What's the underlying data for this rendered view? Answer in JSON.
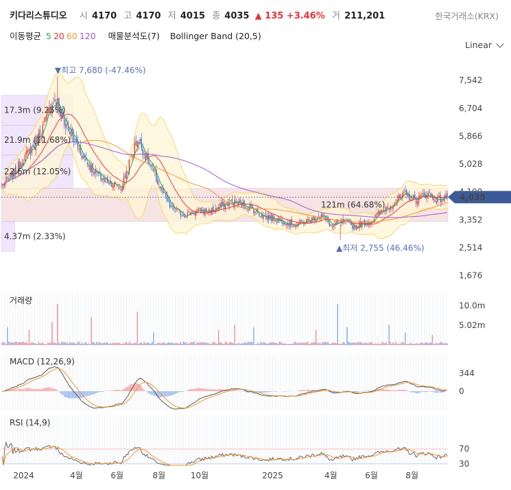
{
  "header": {
    "stock_name": "키다리스튜디오",
    "open_label": "시",
    "open_value": "4170",
    "high_label": "고",
    "high_value": "4170",
    "low_label": "저",
    "low_value": "4015",
    "close_label": "종",
    "close_value": "4035",
    "change_text": "▲ 135 +3.46%",
    "volume_label": "거",
    "volume_value": "211,201",
    "exchange": "한국거래소(KRX)"
  },
  "indicators": {
    "ma_label": "이동평균",
    "ma_periods": [
      {
        "text": "5",
        "color": "#2aa84a"
      },
      {
        "text": "20",
        "color": "#e5323d"
      },
      {
        "text": "60",
        "color": "#f0962e"
      },
      {
        "text": "120",
        "color": "#9b59d0"
      }
    ],
    "vp_label": "매물분석도(7)",
    "bb_label": "Bollinger Band (20,5)"
  },
  "scale_selector": {
    "label": "Linear"
  },
  "colors": {
    "up": "#e5323d",
    "down": "#2f6fdb",
    "bb": "#f5d76e",
    "bb_fill": "#fff6d5",
    "current_price_bg": "#3d5a98",
    "macd_line": "#555555",
    "signal_line": "#f0962e"
  },
  "chart_data": [
    {
      "type": "candlestick",
      "panel": "price",
      "y_ticks": [
        7542,
        6704,
        5866,
        5028,
        4190,
        3352,
        2514,
        1676
      ],
      "y_tick_labels": [
        "7,542",
        "6,704",
        "5,866",
        "5,028",
        "4,190",
        "3,352",
        "2,514",
        "1,676"
      ],
      "ylim": [
        1400,
        8000
      ],
      "current_price_label": "4,035",
      "current_price": 4035,
      "x_labels": [
        "2024",
        "4월",
        "6월",
        "8월",
        "10월",
        "2025",
        "4월",
        "6월",
        "8월"
      ],
      "x_label_index": [
        16,
        55,
        85,
        116,
        146,
        200,
        243,
        273,
        303
      ],
      "n_bars": 330,
      "anchor_closes": [
        [
          0,
          4400
        ],
        [
          8,
          4700
        ],
        [
          16,
          5200
        ],
        [
          24,
          5600
        ],
        [
          32,
          6300
        ],
        [
          38,
          7000
        ],
        [
          42,
          6600
        ],
        [
          50,
          6000
        ],
        [
          58,
          5400
        ],
        [
          66,
          4900
        ],
        [
          74,
          4600
        ],
        [
          80,
          4500
        ],
        [
          88,
          4300
        ],
        [
          100,
          5800
        ],
        [
          108,
          5100
        ],
        [
          116,
          4400
        ],
        [
          124,
          3750
        ],
        [
          134,
          3500
        ],
        [
          144,
          3600
        ],
        [
          156,
          3650
        ],
        [
          170,
          3900
        ],
        [
          182,
          3750
        ],
        [
          194,
          3450
        ],
        [
          206,
          3350
        ],
        [
          216,
          3200
        ],
        [
          228,
          3350
        ],
        [
          236,
          3500
        ],
        [
          244,
          3150
        ],
        [
          252,
          3300
        ],
        [
          260,
          3150
        ],
        [
          272,
          3300
        ],
        [
          280,
          3600
        ],
        [
          290,
          3900
        ],
        [
          298,
          4100
        ],
        [
          306,
          3950
        ],
        [
          314,
          4150
        ],
        [
          322,
          3950
        ],
        [
          329,
          4035
        ]
      ],
      "annotations": {
        "high": {
          "text": "▼최고 7,680 (-47.46%)",
          "index": 41,
          "value": 7680
        },
        "low": {
          "text": "▲최저 2,755 (46.46%)",
          "index": 250,
          "value": 2755
        }
      },
      "volume_profile": [
        {
          "label": "17.3m (9.25%)",
          "from": 6200,
          "to": 7100,
          "width_frac": 0.16
        },
        {
          "label": "21.9m (11.68%)",
          "from": 5300,
          "to": 6200,
          "width_frac": 0.16
        },
        {
          "label": "22.6m (12.05%)",
          "from": 4300,
          "to": 5300,
          "width_frac": 0.16
        },
        {
          "label": "121m (64.68%)",
          "from": 3300,
          "to": 4300,
          "width_frac": 1.0
        },
        {
          "label": "4.37m (2.33%)",
          "from": 2400,
          "to": 3300,
          "width_frac": 0.03
        }
      ]
    },
    {
      "type": "bar",
      "panel": "volume",
      "title": "거래량",
      "y_tick_labels": [
        "10.0m",
        "5.02m"
      ],
      "y_ticks": [
        10000000,
        5020000
      ],
      "ylim": [
        0,
        13000000
      ]
    },
    {
      "type": "line",
      "panel": "macd",
      "title": "MACD (12,26,9)",
      "y_tick_labels": [
        "344",
        "0"
      ],
      "y_ticks": [
        344,
        0
      ]
    },
    {
      "type": "line",
      "panel": "rsi",
      "title": "RSI (14,9)",
      "y_tick_labels": [
        "70",
        "30"
      ],
      "y_ticks": [
        70,
        30
      ],
      "ylim": [
        0,
        100
      ],
      "y_label_colors": [
        "#e5323d",
        "#2f6fdb"
      ]
    }
  ]
}
